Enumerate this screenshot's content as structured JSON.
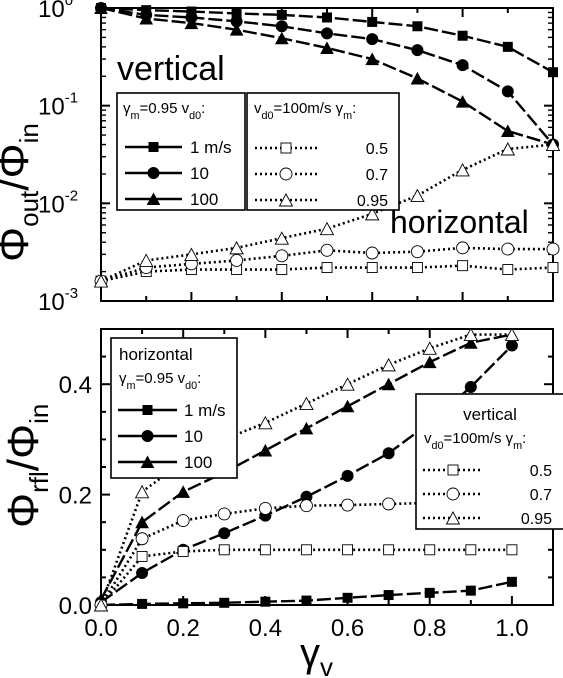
{
  "chart_data": [
    {
      "type": "line",
      "yscale": "log",
      "xlim": [
        0.0,
        1.0
      ],
      "ylim": [
        0.001,
        1
      ],
      "ylabel": {
        "main": "Φ",
        "sub": "out",
        "sep": "/Φ",
        "sub2": "in"
      },
      "y_ticks": [
        {
          "value": 0.001,
          "base": "10",
          "exp": "-3"
        },
        {
          "value": 0.01,
          "base": "10",
          "exp": "-2"
        },
        {
          "value": 0.1,
          "base": "10",
          "exp": "-1"
        },
        {
          "value": 1,
          "base": "10",
          "exp": "0"
        }
      ],
      "annotations": {
        "upper": "vertical",
        "lower": "horizontal"
      },
      "legend_left": {
        "title": "γm=0.95 vd0:",
        "entries": [
          "1 m/s",
          "10",
          "100"
        ]
      },
      "legend_right": {
        "title": "vd0=100m/s γm:",
        "entries": [
          "0.5",
          "0.7",
          "0.95"
        ]
      },
      "series": [
        {
          "name": "1 m/s",
          "group": "vertical",
          "marker": "square",
          "filled": true,
          "dash": "solid",
          "x": [
            0.0,
            0.1,
            0.2,
            0.3,
            0.4,
            0.5,
            0.6,
            0.7,
            0.8,
            0.9,
            1.0
          ],
          "y": [
            1.0,
            0.95,
            0.92,
            0.88,
            0.85,
            0.8,
            0.72,
            0.65,
            0.52,
            0.4,
            0.22
          ]
        },
        {
          "name": "10",
          "group": "vertical",
          "marker": "circle",
          "filled": true,
          "dash": "solid",
          "x": [
            0.0,
            0.1,
            0.2,
            0.3,
            0.4,
            0.5,
            0.6,
            0.7,
            0.8,
            0.9,
            1.0
          ],
          "y": [
            1.0,
            0.85,
            0.8,
            0.73,
            0.65,
            0.55,
            0.48,
            0.37,
            0.26,
            0.14,
            0.04
          ]
        },
        {
          "name": "100",
          "group": "vertical",
          "marker": "triangle",
          "filled": true,
          "dash": "solid",
          "x": [
            0.0,
            0.1,
            0.2,
            0.3,
            0.4,
            0.5,
            0.6,
            0.7,
            0.8,
            0.9,
            1.0
          ],
          "y": [
            1.0,
            0.78,
            0.7,
            0.6,
            0.49,
            0.39,
            0.3,
            0.19,
            0.11,
            0.055,
            0.04
          ]
        },
        {
          "name": "0.5",
          "group": "horizontal",
          "marker": "square",
          "filled": false,
          "dash": "dotted",
          "x": [
            0.0,
            0.1,
            0.2,
            0.3,
            0.4,
            0.5,
            0.6,
            0.7,
            0.8,
            0.9,
            1.0
          ],
          "y": [
            0.0016,
            0.002,
            0.0021,
            0.0021,
            0.0021,
            0.0022,
            0.0022,
            0.0022,
            0.0023,
            0.0021,
            0.0022
          ]
        },
        {
          "name": "0.7",
          "group": "horizontal",
          "marker": "circle",
          "filled": false,
          "dash": "dotted",
          "x": [
            0.0,
            0.1,
            0.2,
            0.3,
            0.4,
            0.5,
            0.6,
            0.7,
            0.8,
            0.9,
            1.0
          ],
          "y": [
            0.0016,
            0.0022,
            0.0024,
            0.0026,
            0.0029,
            0.0033,
            0.0031,
            0.0032,
            0.0035,
            0.0034,
            0.0034
          ]
        },
        {
          "name": "0.95",
          "group": "horizontal",
          "marker": "triangle",
          "filled": false,
          "dash": "dotted",
          "x": [
            0.0,
            0.1,
            0.2,
            0.3,
            0.4,
            0.5,
            0.6,
            0.7,
            0.8,
            0.9,
            1.0
          ],
          "y": [
            0.0016,
            0.0026,
            0.003,
            0.0035,
            0.0044,
            0.0055,
            0.0078,
            0.012,
            0.022,
            0.036,
            0.04
          ]
        }
      ]
    },
    {
      "type": "line",
      "yscale": "linear",
      "xlim": [
        0.0,
        1.1
      ],
      "ylim": [
        0.0,
        0.5
      ],
      "xlabel": {
        "main": "γ",
        "sub": "v"
      },
      "ylabel": {
        "main": "Φ",
        "sub": "rfl",
        "sep": "/Φ",
        "sub2": "in"
      },
      "x_ticks": [
        "0.0",
        "0.2",
        "0.4",
        "0.6",
        "0.8",
        "1.0"
      ],
      "y_ticks": [
        "0.0",
        "0.2",
        "0.4"
      ],
      "legend_left": {
        "heading": "horizontal",
        "title": "γm=0.95 vd0:",
        "entries": [
          "1 m/s",
          "10",
          "100"
        ]
      },
      "legend_right": {
        "heading": "vertical",
        "title": "vd0=100m/s γm:",
        "entries": [
          "0.5",
          "0.7",
          "0.95"
        ]
      },
      "series": [
        {
          "name": "1 m/s",
          "group": "horizontal",
          "marker": "square",
          "filled": true,
          "dash": "solid",
          "x": [
            0.0,
            0.1,
            0.2,
            0.3,
            0.4,
            0.5,
            0.6,
            0.7,
            0.8,
            0.9,
            1.0
          ],
          "y": [
            0.0,
            0.002,
            0.003,
            0.004,
            0.006,
            0.008,
            0.013,
            0.018,
            0.022,
            0.026,
            0.042
          ]
        },
        {
          "name": "10",
          "group": "horizontal",
          "marker": "circle",
          "filled": true,
          "dash": "solid",
          "x": [
            0.0,
            0.1,
            0.2,
            0.3,
            0.4,
            0.5,
            0.6,
            0.7,
            0.8,
            0.9,
            1.0
          ],
          "y": [
            0.005,
            0.058,
            0.1,
            0.13,
            0.162,
            0.196,
            0.234,
            0.275,
            0.33,
            0.395,
            0.47
          ]
        },
        {
          "name": "100",
          "group": "horizontal",
          "marker": "triangle",
          "filled": true,
          "dash": "solid",
          "x": [
            0.0,
            0.1,
            0.2,
            0.3,
            0.4,
            0.5,
            0.6,
            0.7,
            0.8,
            0.9,
            1.0
          ],
          "y": [
            0.01,
            0.15,
            0.205,
            0.24,
            0.28,
            0.32,
            0.36,
            0.4,
            0.44,
            0.475,
            0.49
          ]
        },
        {
          "name": "0.5",
          "group": "vertical",
          "marker": "square",
          "filled": false,
          "dash": "dotted",
          "x": [
            0.0,
            0.1,
            0.2,
            0.3,
            0.4,
            0.5,
            0.6,
            0.7,
            0.8,
            0.9,
            1.0
          ],
          "y": [
            0.0,
            0.088,
            0.097,
            0.1,
            0.1,
            0.1,
            0.1,
            0.1,
            0.1,
            0.1,
            0.1
          ]
        },
        {
          "name": "0.7",
          "group": "vertical",
          "marker": "circle",
          "filled": false,
          "dash": "dotted",
          "x": [
            0.0,
            0.1,
            0.2,
            0.3,
            0.4,
            0.5,
            0.6,
            0.7,
            0.8,
            0.9,
            1.0
          ],
          "y": [
            0.0,
            0.12,
            0.153,
            0.165,
            0.175,
            0.18,
            0.181,
            0.183,
            0.185,
            0.185,
            0.185
          ]
        },
        {
          "name": "0.95",
          "group": "vertical",
          "marker": "triangle",
          "filled": false,
          "dash": "dotted",
          "x": [
            0.0,
            0.1,
            0.2,
            0.3,
            0.4,
            0.5,
            0.6,
            0.7,
            0.8,
            0.9,
            1.0
          ],
          "y": [
            0.0,
            0.205,
            0.26,
            0.3,
            0.33,
            0.365,
            0.4,
            0.435,
            0.465,
            0.49,
            0.49
          ]
        }
      ]
    }
  ]
}
